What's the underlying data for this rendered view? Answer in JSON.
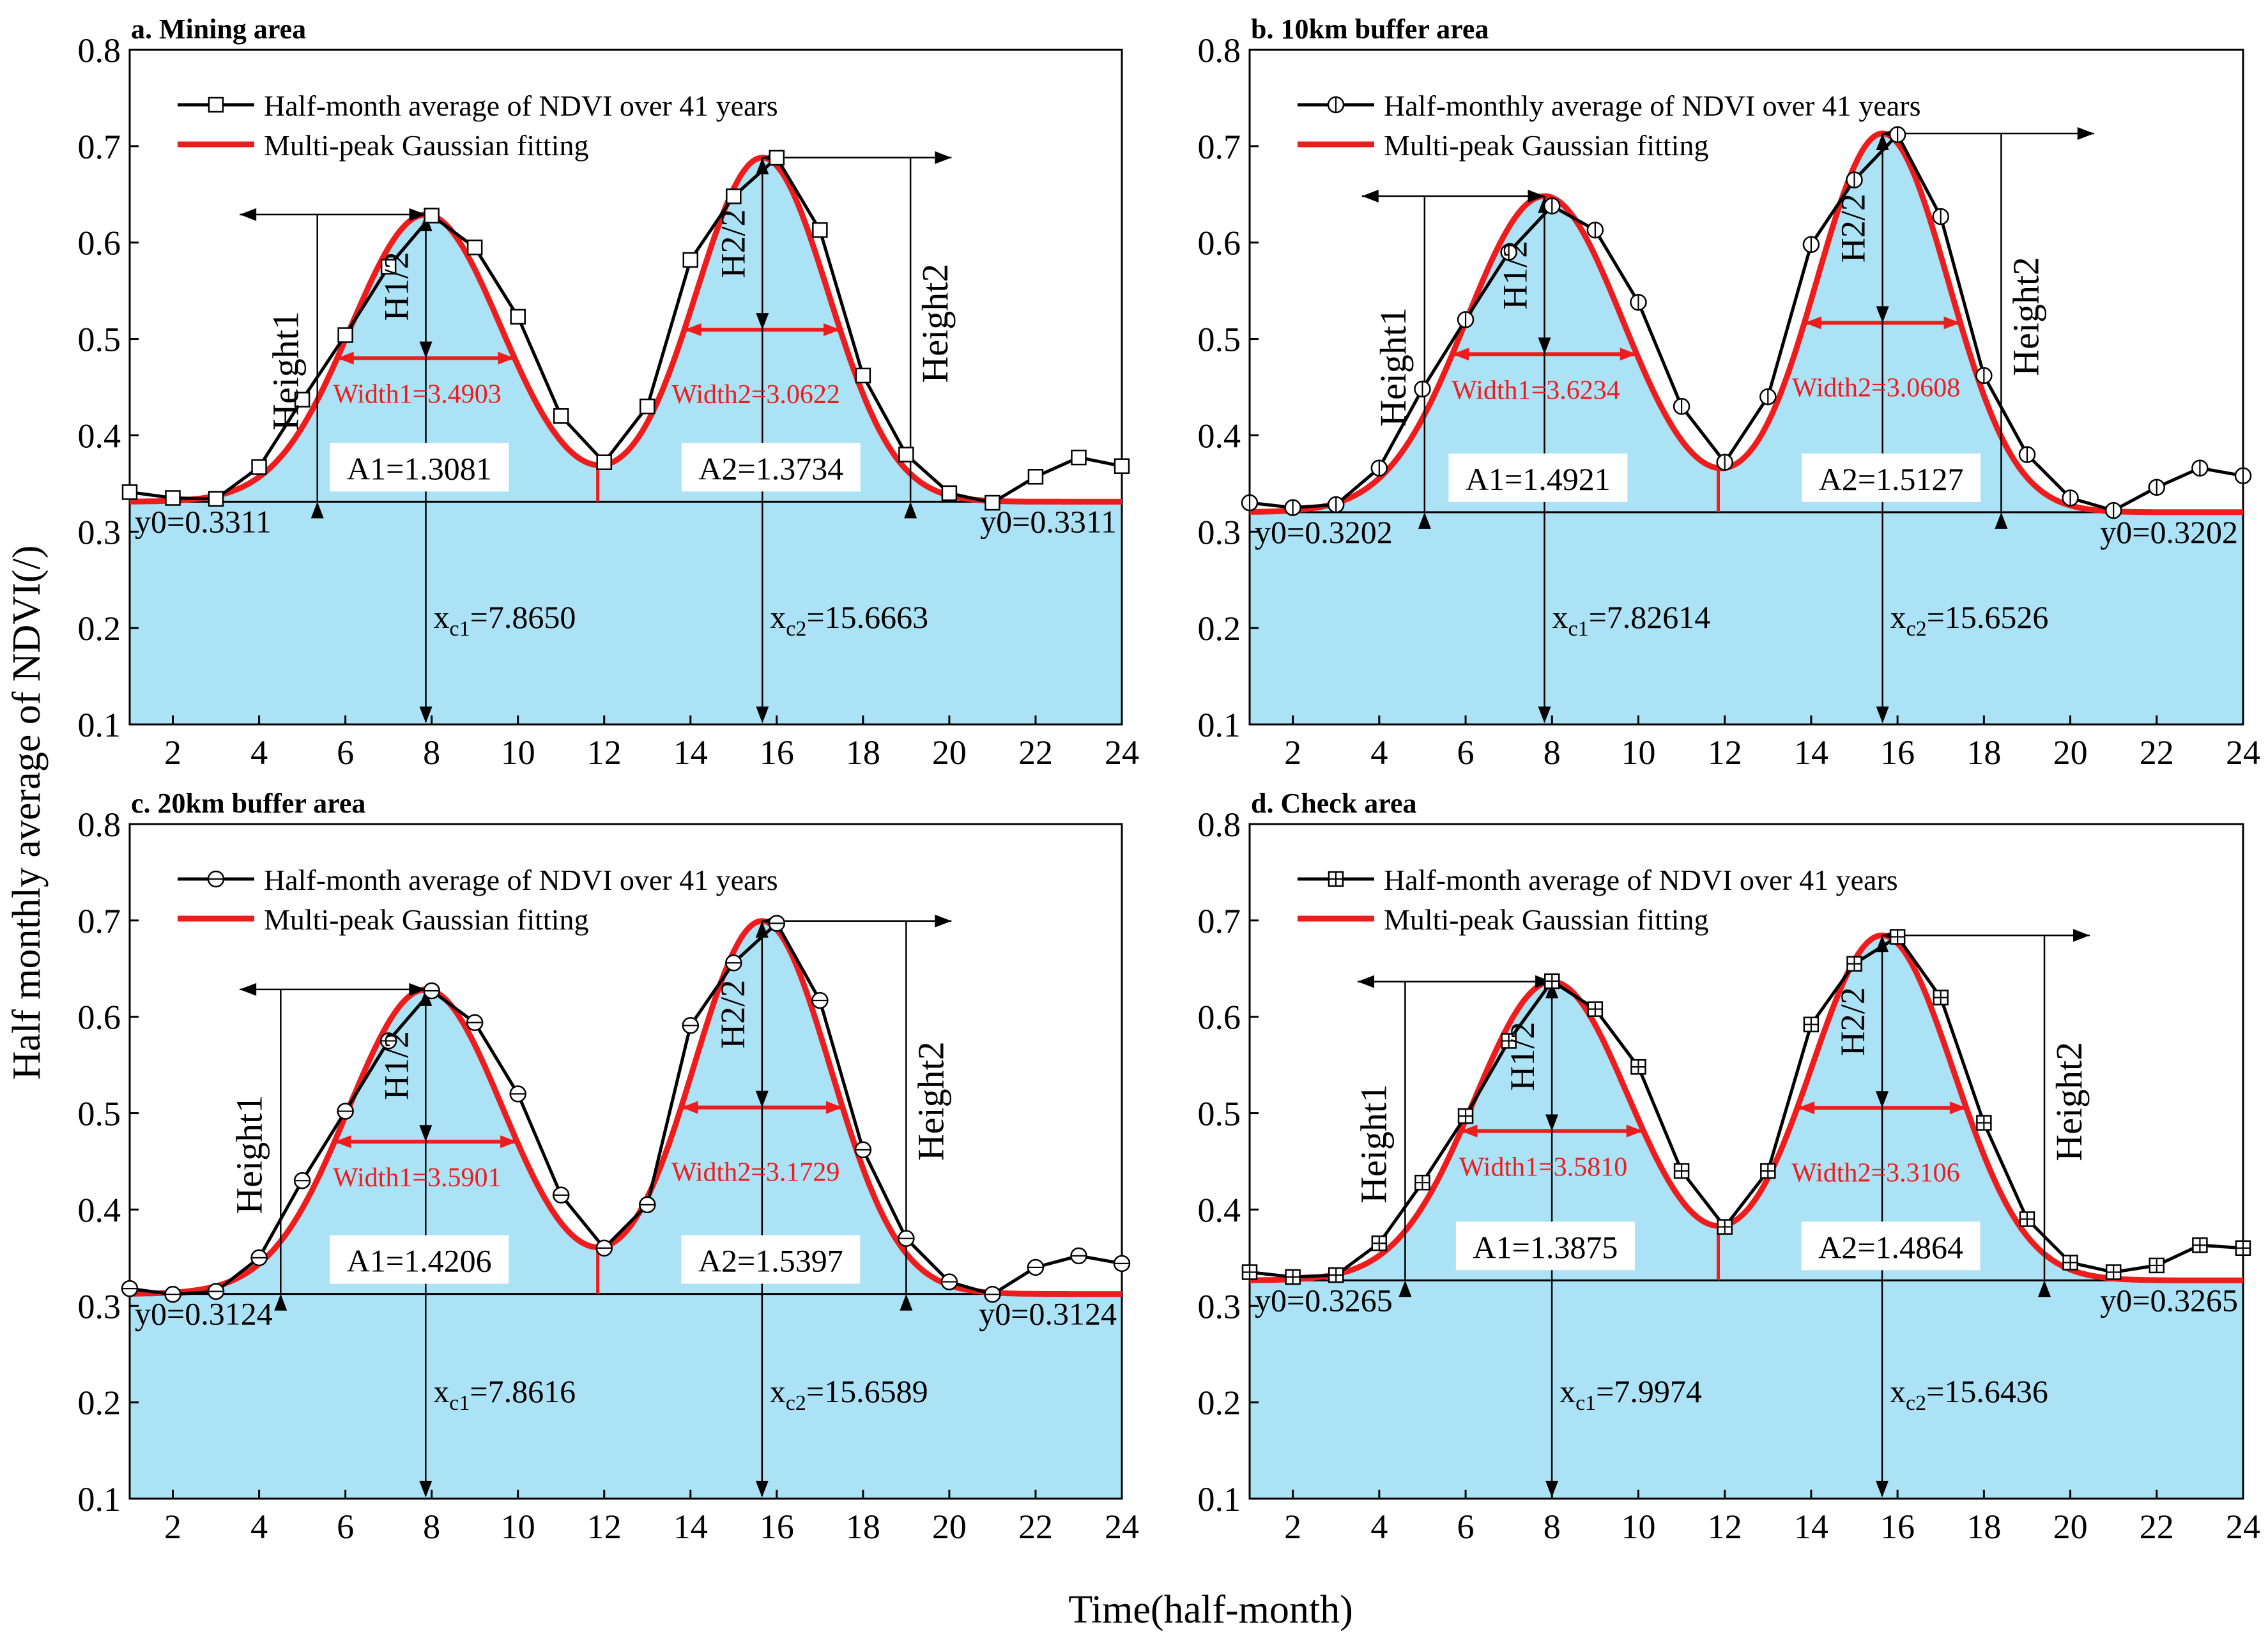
{
  "figure": {
    "ylabel": "Half monthly average of NDVI(/)",
    "xlabel": "Time(half-month)"
  },
  "colors": {
    "fill": "#abe2f5",
    "fit": "#ee1c1c",
    "data": "#000000",
    "ann_red": "#ee1c1c"
  },
  "chart_data": [
    {
      "type": "line",
      "title": "a. Mining area",
      "marker": "square",
      "legend": [
        "Half-month average of NDVI over 41 years",
        "Multi-peak Gaussian fitting"
      ],
      "xlim": [
        1,
        24
      ],
      "ylim": [
        0.1,
        0.8
      ],
      "xticks": [
        2,
        4,
        6,
        8,
        10,
        12,
        14,
        16,
        18,
        20,
        22,
        24
      ],
      "yticks": [
        0.1,
        0.2,
        0.3,
        0.4,
        0.5,
        0.6,
        0.7,
        0.8
      ],
      "x": [
        1,
        2,
        3,
        4,
        5,
        6,
        7,
        8,
        9,
        10,
        11,
        12,
        13,
        14,
        15,
        16,
        17,
        18,
        19,
        20,
        21,
        22,
        23,
        24
      ],
      "y": [
        0.341,
        0.335,
        0.334,
        0.367,
        0.437,
        0.504,
        0.575,
        0.628,
        0.595,
        0.523,
        0.42,
        0.372,
        0.43,
        0.582,
        0.648,
        0.688,
        0.613,
        0.462,
        0.38,
        0.34,
        0.33,
        0.357,
        0.377,
        0.368
      ],
      "fit": {
        "y0": 0.3311,
        "xc1": 7.865,
        "xc2": 15.6663,
        "h1": 0.298,
        "h2": 0.357,
        "w1": 3.4903,
        "w2": 3.0622,
        "A1": 1.3081,
        "A2": 1.3734,
        "split": 11.85
      },
      "labels": {
        "y0": "y0=0.3311",
        "xc1_main": "x",
        "xc1_sub": "c1",
        "xc1_val": "=7.8650",
        "xc2_main": "x",
        "xc2_sub": "c2",
        "xc2_val": "=15.6663",
        "A1": "A1=1.3081",
        "A2": "A2=1.3734",
        "w1": "Width1=3.4903",
        "w2": "Width2=3.0622",
        "h1": "H1/2",
        "h2": "H2/2",
        "height1": "Height1",
        "height2": "Height2"
      },
      "arrows": {
        "height1_x": 5.35,
        "height1_left": 3.55,
        "height2_x": 19.1,
        "height2_right": 20.05
      }
    },
    {
      "type": "line",
      "title": "b. 10km buffer area",
      "marker": "circle-v",
      "legend": [
        "Half-monthly average of NDVI over 41 years",
        "Multi-peak Gaussian fitting"
      ],
      "xlim": [
        1,
        24
      ],
      "ylim": [
        0.1,
        0.8
      ],
      "xticks": [
        2,
        4,
        6,
        8,
        10,
        12,
        14,
        16,
        18,
        20,
        22,
        24
      ],
      "yticks": [
        0.1,
        0.2,
        0.3,
        0.4,
        0.5,
        0.6,
        0.7,
        0.8
      ],
      "x": [
        1,
        2,
        3,
        4,
        5,
        6,
        7,
        8,
        9,
        10,
        11,
        12,
        13,
        14,
        15,
        16,
        17,
        18,
        19,
        20,
        21,
        22,
        23,
        24
      ],
      "y": [
        0.33,
        0.325,
        0.328,
        0.366,
        0.448,
        0.52,
        0.59,
        0.638,
        0.613,
        0.538,
        0.43,
        0.372,
        0.44,
        0.598,
        0.665,
        0.712,
        0.627,
        0.462,
        0.38,
        0.335,
        0.322,
        0.346,
        0.366,
        0.358
      ],
      "fit": {
        "y0": 0.3202,
        "xc1": 7.82614,
        "xc2": 15.6526,
        "h1": 0.328,
        "h2": 0.393,
        "w1": 3.6234,
        "w2": 3.0608,
        "A1": 1.4921,
        "A2": 1.5127,
        "split": 11.85
      },
      "labels": {
        "y0": "y0=0.3202",
        "xc1_main": "x",
        "xc1_sub": "c1",
        "xc1_val": "=7.82614",
        "xc2_main": "x",
        "xc2_sub": "c2",
        "xc2_val": "=15.6526",
        "A1": "A1=1.4921",
        "A2": "A2=1.5127",
        "w1": "Width1=3.6234",
        "w2": "Width2=3.0608",
        "h1": "H1/2",
        "h2": "H2/2",
        "height1": "Height1",
        "height2": "Height2"
      },
      "arrows": {
        "height1_x": 5.05,
        "height1_left": 3.6,
        "height2_x": 18.4,
        "height2_right": 20.55
      }
    },
    {
      "type": "line",
      "title": "c. 20km buffer area",
      "marker": "circle-h",
      "legend": [
        "Half-month average of NDVI over 41 years",
        "Multi-peak Gaussian fitting"
      ],
      "xlim": [
        1,
        24
      ],
      "ylim": [
        0.1,
        0.8
      ],
      "xticks": [
        2,
        4,
        6,
        8,
        10,
        12,
        14,
        16,
        18,
        20,
        22,
        24
      ],
      "yticks": [
        0.1,
        0.2,
        0.3,
        0.4,
        0.5,
        0.6,
        0.7,
        0.8
      ],
      "x": [
        1,
        2,
        3,
        4,
        5,
        6,
        7,
        8,
        9,
        10,
        11,
        12,
        13,
        14,
        15,
        16,
        17,
        18,
        19,
        20,
        21,
        22,
        23,
        24
      ],
      "y": [
        0.318,
        0.312,
        0.315,
        0.35,
        0.43,
        0.502,
        0.575,
        0.627,
        0.594,
        0.52,
        0.415,
        0.36,
        0.405,
        0.591,
        0.656,
        0.697,
        0.617,
        0.462,
        0.37,
        0.325,
        0.312,
        0.34,
        0.352,
        0.344
      ],
      "fit": {
        "y0": 0.3124,
        "xc1": 7.8616,
        "xc2": 15.6589,
        "h1": 0.316,
        "h2": 0.387,
        "w1": 3.5901,
        "w2": 3.1729,
        "A1": 1.4206,
        "A2": 1.5397,
        "split": 11.85
      },
      "labels": {
        "y0": "y0=0.3124",
        "xc1_main": "x",
        "xc1_sub": "c1",
        "xc1_val": "=7.8616",
        "xc2_main": "x",
        "xc2_sub": "c2",
        "xc2_val": "=15.6589",
        "A1": "A1=1.4206",
        "A2": "A2=1.5397",
        "w1": "Width1=3.5901",
        "w2": "Width2=3.1729",
        "h1": "H1/2",
        "h2": "H2/2",
        "height1": "Height1",
        "height2": "Height2"
      },
      "arrows": {
        "height1_x": 4.5,
        "height1_left": 3.55,
        "height2_x": 19.0,
        "height2_right": 20.05
      }
    },
    {
      "type": "line",
      "title": "d. Check area",
      "marker": "square-plus",
      "legend": [
        "Half-month average of NDVI over 41 years",
        "Multi-peak Gaussian fitting"
      ],
      "xlim": [
        1,
        24
      ],
      "ylim": [
        0.1,
        0.8
      ],
      "xticks": [
        2,
        4,
        6,
        8,
        10,
        12,
        14,
        16,
        18,
        20,
        22,
        24
      ],
      "yticks": [
        0.1,
        0.2,
        0.3,
        0.4,
        0.5,
        0.6,
        0.7,
        0.8
      ],
      "x": [
        1,
        2,
        3,
        4,
        5,
        6,
        7,
        8,
        9,
        10,
        11,
        12,
        13,
        14,
        15,
        16,
        17,
        18,
        19,
        20,
        21,
        22,
        23,
        24
      ],
      "y": [
        0.335,
        0.33,
        0.332,
        0.365,
        0.428,
        0.497,
        0.575,
        0.637,
        0.608,
        0.548,
        0.44,
        0.382,
        0.44,
        0.592,
        0.655,
        0.683,
        0.62,
        0.49,
        0.39,
        0.345,
        0.335,
        0.342,
        0.363,
        0.36
      ],
      "fit": {
        "y0": 0.3265,
        "xc1": 7.9974,
        "xc2": 15.6436,
        "h1": 0.31,
        "h2": 0.358,
        "w1": 3.581,
        "w2": 3.3106,
        "A1": 1.3875,
        "A2": 1.4864,
        "split": 11.85
      },
      "labels": {
        "y0": "y0=0.3265",
        "xc1_main": "x",
        "xc1_sub": "c1",
        "xc1_val": "=7.9974",
        "xc2_main": "x",
        "xc2_sub": "c2",
        "xc2_val": "=15.6436",
        "A1": "A1=1.3875",
        "A2": "A2=1.4864",
        "w1": "Width1=3.5810",
        "w2": "Width2=3.3106",
        "h1": "H1/2",
        "h2": "H2/2",
        "height1": "Height1",
        "height2": "Height2"
      },
      "arrows": {
        "height1_x": 4.6,
        "height1_left": 3.5,
        "height2_x": 19.4,
        "height2_right": 20.45
      }
    }
  ]
}
